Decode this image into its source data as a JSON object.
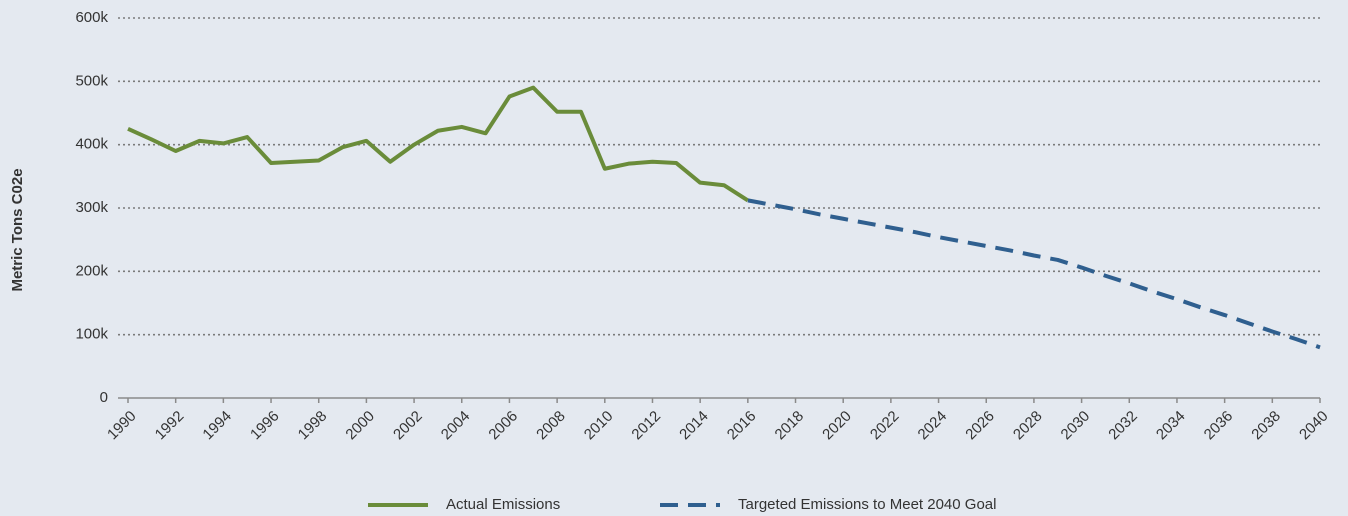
{
  "chart_data": {
    "type": "line",
    "y_label": "Metric Tons C02e",
    "x": [
      1990,
      1991,
      1992,
      1993,
      1994,
      1995,
      1996,
      1997,
      1998,
      1999,
      2000,
      2001,
      2002,
      2003,
      2004,
      2005,
      2006,
      2007,
      2008,
      2009,
      2010,
      2011,
      2012,
      2013,
      2014,
      2015,
      2016,
      2017,
      2018,
      2019,
      2020,
      2021,
      2022,
      2023,
      2024,
      2025,
      2026,
      2027,
      2028,
      2029,
      2030,
      2031,
      2032,
      2033,
      2034,
      2035,
      2036,
      2037,
      2038,
      2039,
      2040
    ],
    "series": [
      {
        "name": "Actual Emissions",
        "color": "#6a8c3a",
        "dashed": false,
        "values": [
          425000,
          408000,
          390000,
          406000,
          402000,
          412000,
          371000,
          373000,
          375000,
          396000,
          406000,
          373000,
          400000,
          422000,
          428000,
          418000,
          476000,
          490000,
          452000,
          452000,
          362000,
          370000,
          373000,
          371000,
          340000,
          336000,
          312000,
          null,
          null,
          null,
          null,
          null,
          null,
          null,
          null,
          null,
          null,
          null,
          null,
          null,
          null,
          null,
          null,
          null,
          null,
          null,
          null,
          null,
          null,
          null,
          null
        ]
      },
      {
        "name": "Targeted Emissions to Meet 2040 Goal",
        "color": "#2f5f8f",
        "dashed": true,
        "values": [
          null,
          null,
          null,
          null,
          null,
          null,
          null,
          null,
          null,
          null,
          null,
          null,
          null,
          null,
          null,
          null,
          null,
          null,
          null,
          null,
          null,
          null,
          null,
          null,
          null,
          null,
          312000,
          305000,
          298000,
          290000,
          283000,
          276000,
          269000,
          262000,
          254000,
          247000,
          240000,
          233000,
          225000,
          218000,
          206000,
          193000,
          181000,
          168000,
          156000,
          143000,
          131000,
          118000,
          105000,
          93000,
          80000
        ]
      }
    ],
    "xlim": [
      1990,
      2040
    ],
    "xticks": [
      1990,
      1992,
      1994,
      1996,
      1998,
      2000,
      2002,
      2004,
      2006,
      2008,
      2010,
      2012,
      2014,
      2016,
      2018,
      2020,
      2022,
      2024,
      2026,
      2028,
      2030,
      2032,
      2034,
      2036,
      2038,
      2040
    ],
    "ylim": [
      0,
      600000
    ],
    "yticks": [
      0,
      {
        "value": 100000,
        "label": "100k"
      },
      {
        "value": 200000,
        "label": "200k"
      },
      {
        "value": 300000,
        "label": "300k"
      },
      {
        "value": 400000,
        "label": "400k"
      },
      {
        "value": 500000,
        "label": "500k"
      },
      {
        "value": 600000,
        "label": "600k"
      }
    ],
    "grid": true,
    "legend": "bottom"
  }
}
